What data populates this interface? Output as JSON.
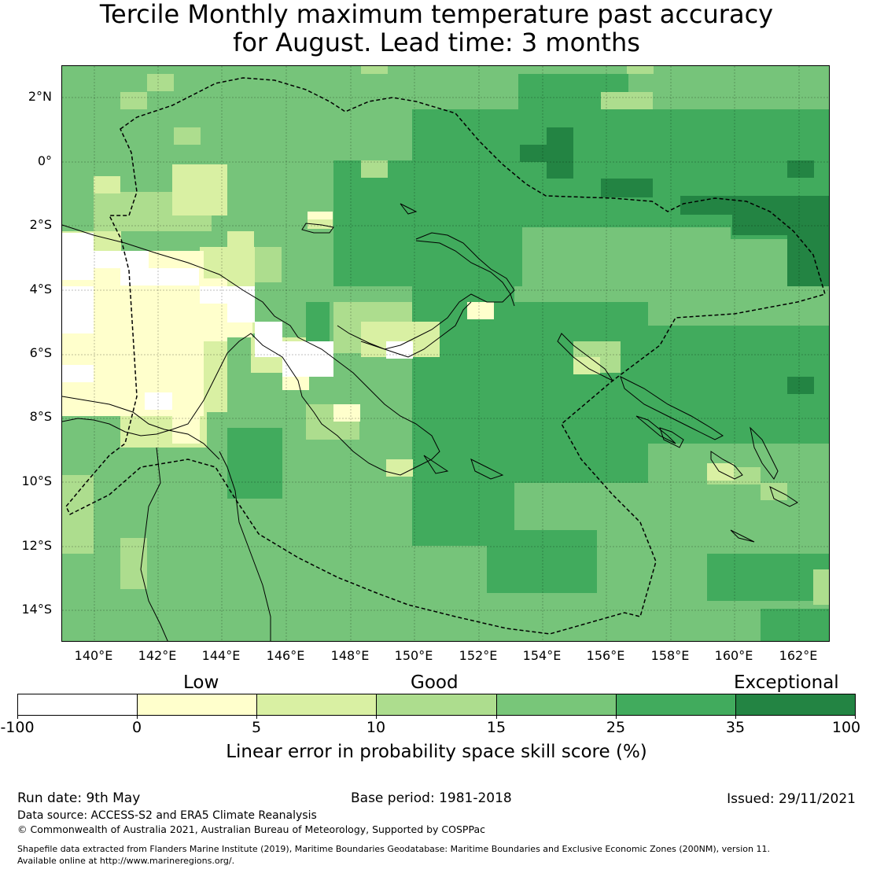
{
  "title": {
    "line1": "Tercile Monthly maximum temperature past accuracy",
    "line2": "for August. Lead time: 3 months"
  },
  "map": {
    "lat_labels": [
      "2°N",
      "0°",
      "2°S",
      "4°S",
      "6°S",
      "8°S",
      "10°S",
      "12°S",
      "14°S"
    ],
    "lon_labels": [
      "140°E",
      "142°E",
      "144°E",
      "146°E",
      "148°E",
      "150°E",
      "152°E",
      "154°E",
      "156°E",
      "158°E",
      "160°E",
      "162°E"
    ],
    "background_color": "#76c47a",
    "boundary_style": "dashed",
    "coastline_color": "#000000"
  },
  "colorbar": {
    "category_labels": [
      "Low",
      "Good",
      "Exceptional"
    ],
    "ticks": [
      "-100",
      "0",
      "5",
      "10",
      "15",
      "25",
      "35",
      "100"
    ],
    "colors": [
      "#ffffff",
      "#ffffcc",
      "#d9f0a3",
      "#addd8e",
      "#78c679",
      "#41ab5d",
      "#238443"
    ],
    "label": "Linear error in probability space skill score (%)"
  },
  "footer": {
    "run_date": "Run date: 9th May",
    "base_period": "Base period: 1981-2018",
    "issued": "Issued: 29/11/2021",
    "data_source": "Data source: ACCESS-S2 and ERA5 Climate Reanalysis",
    "copyright": "© Commonwealth of Australia 2021, Australian Bureau of Meteorology, Supported by COSPPac",
    "shapefile_line1": "Shapefile data extracted from Flanders Marine Institute (2019), Maritime Boundaries Geodatabase: Maritime Boundaries and Exclusive Economic Zones (200NM), version 11.",
    "shapefile_line2": "Available online at http://www.marineregions.org/."
  }
}
